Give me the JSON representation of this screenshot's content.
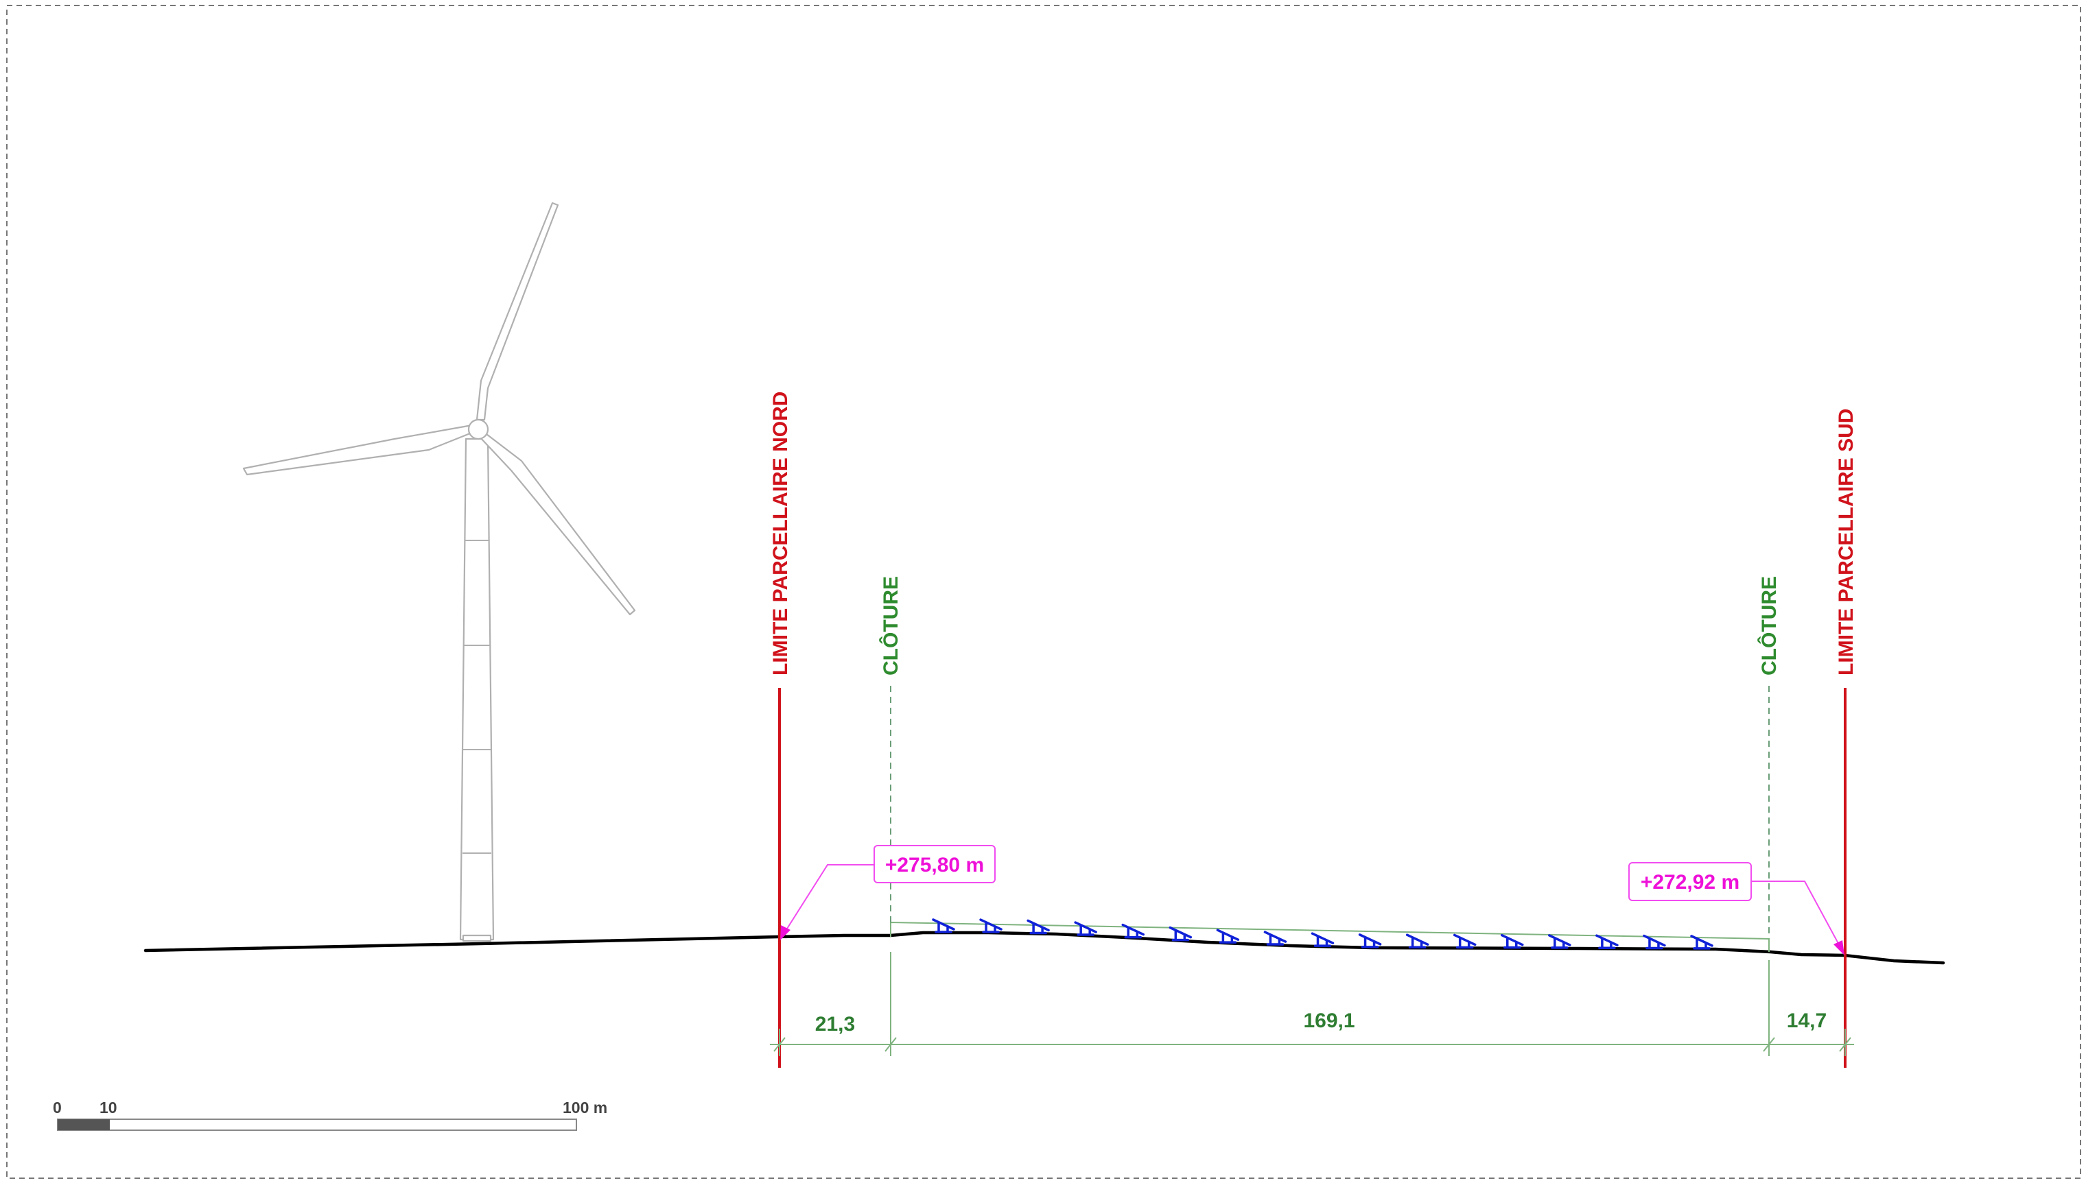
{
  "diagram": {
    "limits": {
      "north": "LIMITE PARCELLAIRE NORD",
      "south": "LIMITE PARCELLAIRE SUD"
    },
    "fences": {
      "left": "CLÔTURE",
      "right": "CLÔTURE"
    },
    "elevations": {
      "north": "+275,80 m",
      "south": "+272,92 m"
    },
    "dimensions": {
      "north_setback": "21,3",
      "panel_zone": "169,1",
      "south_setback": "14,7"
    },
    "scale_bar": {
      "label_start": "0",
      "label_mid": "10",
      "label_end": "100 m"
    },
    "panel_count": 17,
    "colors": {
      "limit": "#d0121b",
      "fence": "#2e8b2e",
      "elevation": "#ee10d8",
      "panels": "#1022d8",
      "ground": "#000000",
      "turbine": "#b0b0b0"
    }
  }
}
